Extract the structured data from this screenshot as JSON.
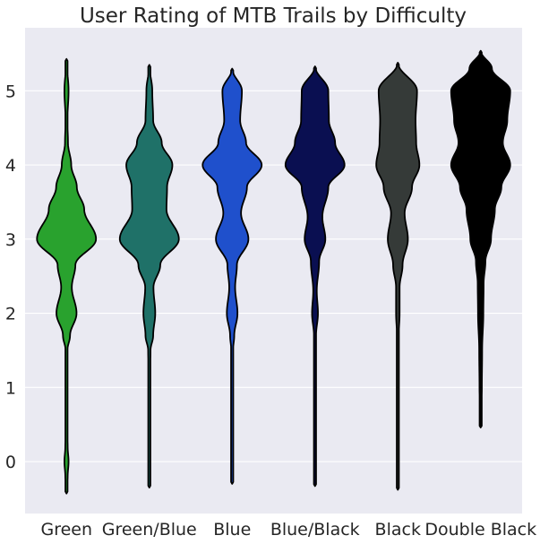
{
  "chart_data": {
    "type": "violin",
    "title": "User Rating of MTB Trails by Difficulty",
    "xlabel": "",
    "ylabel": "",
    "ylim": [
      -0.7,
      5.85
    ],
    "yticks": [
      0,
      1,
      2,
      3,
      4,
      5
    ],
    "grid": true,
    "categories": [
      "Green",
      "Green/Blue",
      "Blue",
      "Blue/Black",
      "Black",
      "Double Black"
    ],
    "series": [
      {
        "category": "Green",
        "color": "#29a22e",
        "range": [
          -0.43,
          5.43
        ],
        "profile": [
          [
            -0.43,
            0
          ],
          [
            -0.2,
            0.04
          ],
          [
            0,
            0.07
          ],
          [
            0.2,
            0.04
          ],
          [
            0.5,
            0.01
          ],
          [
            1,
            0.005
          ],
          [
            1.5,
            0.03
          ],
          [
            1.7,
            0.12
          ],
          [
            2,
            0.34
          ],
          [
            2.35,
            0.18
          ],
          [
            2.65,
            0.3
          ],
          [
            3,
            1
          ],
          [
            3.4,
            0.6
          ],
          [
            3.7,
            0.35
          ],
          [
            4,
            0.16
          ],
          [
            4.3,
            0.05
          ],
          [
            4.6,
            0.03
          ],
          [
            5,
            0.07
          ],
          [
            5.43,
            0
          ]
        ]
      },
      {
        "category": "Green/Blue",
        "color": "#1f7168",
        "range": [
          -0.35,
          5.35
        ],
        "profile": [
          [
            -0.35,
            0
          ],
          [
            0,
            0.025
          ],
          [
            0.3,
            0.01
          ],
          [
            1,
            0.01
          ],
          [
            1.5,
            0.04
          ],
          [
            1.7,
            0.13
          ],
          [
            2,
            0.2
          ],
          [
            2.35,
            0.14
          ],
          [
            2.65,
            0.37
          ],
          [
            3,
            1
          ],
          [
            3.4,
            0.58
          ],
          [
            3.7,
            0.6
          ],
          [
            4,
            0.78
          ],
          [
            4.3,
            0.42
          ],
          [
            4.6,
            0.13
          ],
          [
            5,
            0.1
          ],
          [
            5.35,
            0
          ]
        ]
      },
      {
        "category": "Blue",
        "color": "#1f50cc",
        "range": [
          -0.3,
          5.3
        ],
        "profile": [
          [
            -0.3,
            0
          ],
          [
            0,
            0.03
          ],
          [
            0.3,
            0.01
          ],
          [
            1,
            0.01
          ],
          [
            1.5,
            0.03
          ],
          [
            1.7,
            0.07
          ],
          [
            2,
            0.18
          ],
          [
            2.35,
            0.1
          ],
          [
            2.65,
            0.16
          ],
          [
            3,
            0.55
          ],
          [
            3.35,
            0.3
          ],
          [
            3.7,
            0.5
          ],
          [
            4,
            1
          ],
          [
            4.3,
            0.47
          ],
          [
            4.6,
            0.27
          ],
          [
            5,
            0.33
          ],
          [
            5.3,
            0
          ]
        ]
      },
      {
        "category": "Blue/Black",
        "color": "#0a0f51",
        "range": [
          -0.33,
          5.33
        ],
        "profile": [
          [
            -0.33,
            0
          ],
          [
            0,
            0.03
          ],
          [
            0.3,
            0.015
          ],
          [
            1,
            0.015
          ],
          [
            1.5,
            0.025
          ],
          [
            1.7,
            0.035
          ],
          [
            2,
            0.1
          ],
          [
            2.3,
            0.06
          ],
          [
            2.7,
            0.14
          ],
          [
            3,
            0.35
          ],
          [
            3.3,
            0.25
          ],
          [
            3.7,
            0.45
          ],
          [
            4,
            1
          ],
          [
            4.3,
            0.68
          ],
          [
            4.6,
            0.47
          ],
          [
            5,
            0.45
          ],
          [
            5.33,
            0
          ]
        ]
      },
      {
        "category": "Black",
        "color": "#353a38",
        "range": [
          -0.38,
          5.38
        ],
        "profile": [
          [
            -0.38,
            0
          ],
          [
            0,
            0.025
          ],
          [
            1,
            0.02
          ],
          [
            1.7,
            0.03
          ],
          [
            2,
            0.06
          ],
          [
            2.35,
            0.06
          ],
          [
            2.65,
            0.16
          ],
          [
            3,
            0.34
          ],
          [
            3.35,
            0.23
          ],
          [
            3.7,
            0.48
          ],
          [
            4,
            0.73
          ],
          [
            4.3,
            0.62
          ],
          [
            4.6,
            0.6
          ],
          [
            5,
            0.65
          ],
          [
            5.38,
            0
          ]
        ]
      },
      {
        "category": "Double Black",
        "color": "#000000",
        "range": [
          0.46,
          5.54
        ],
        "profile": [
          [
            0.46,
            0
          ],
          [
            1,
            0.04
          ],
          [
            1.5,
            0.05
          ],
          [
            2,
            0.09
          ],
          [
            2.4,
            0.1
          ],
          [
            2.7,
            0.16
          ],
          [
            3,
            0.35
          ],
          [
            3.4,
            0.48
          ],
          [
            3.7,
            0.7
          ],
          [
            4,
            1
          ],
          [
            4.3,
            0.75
          ],
          [
            4.6,
            0.9
          ],
          [
            5,
            1
          ],
          [
            5.3,
            0.38
          ],
          [
            5.54,
            0
          ]
        ]
      }
    ]
  }
}
